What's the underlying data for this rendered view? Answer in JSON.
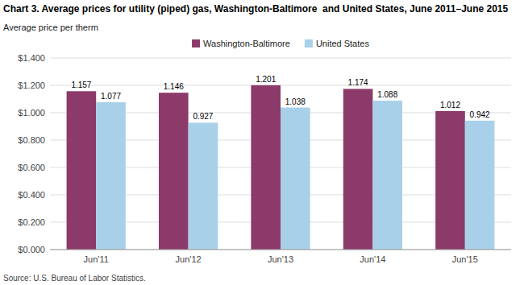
{
  "chart_data": {
    "type": "bar",
    "title": "Chart 3. Average prices for utility (piped) gas, Washington-Baltimore  and United States, June 2011–June 2015",
    "ylabel": "Average price per therm",
    "source": "Source: U.S. Bureau of Labor Statistics.",
    "categories": [
      "Jun'11",
      "Jun'12",
      "Jun'13",
      "Jun'14",
      "Jun'15"
    ],
    "series": [
      {
        "name": "Washington-Baltimore",
        "color": "#8B3A6A",
        "values": [
          1.157,
          1.146,
          1.201,
          1.174,
          1.012
        ]
      },
      {
        "name": "United States",
        "color": "#A8D0E8",
        "values": [
          1.077,
          0.927,
          1.038,
          1.088,
          0.942
        ]
      }
    ],
    "ylim": [
      0.0,
      1.4
    ],
    "yticks": [
      {
        "value": 0.0,
        "label": "$0.000"
      },
      {
        "value": 0.2,
        "label": "$0.200"
      },
      {
        "value": 0.4,
        "label": "$0.400"
      },
      {
        "value": 0.6,
        "label": "$0.600"
      },
      {
        "value": 0.8,
        "label": "$0.800"
      },
      {
        "value": 1.0,
        "label": "$1.000"
      },
      {
        "value": 1.2,
        "label": "$1.200"
      },
      {
        "value": 1.4,
        "label": "$1.400"
      }
    ],
    "grid": true,
    "legend": "top",
    "data_labels": true
  }
}
